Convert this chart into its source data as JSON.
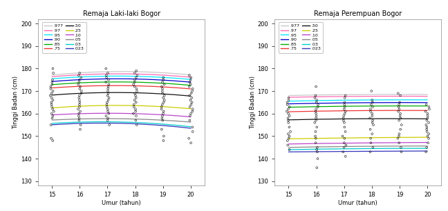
{
  "title_left": "Remaja Laki-laki Bogor",
  "title_right": "Remaja Perempuan Bogor",
  "xlabel": "Umur (tahun)",
  "ylabel": "Tinggi Badan (cm)",
  "xlim": [
    14.5,
    20.5
  ],
  "ylim": [
    128,
    202
  ],
  "xticks": [
    15,
    16,
    17,
    18,
    19,
    20
  ],
  "yticks": [
    130,
    140,
    150,
    160,
    170,
    180,
    190,
    200
  ],
  "legend_col1_labels": [
    ".977",
    ".97",
    ".95",
    ".90",
    ".85",
    ".75"
  ],
  "legend_col2_labels": [
    ".50",
    ".25",
    ".10",
    ".05",
    ".03",
    ".023"
  ],
  "ages": [
    15,
    16,
    17,
    18,
    19,
    20
  ],
  "curves_male": {
    "0.977": [
      177.0,
      178.2,
      178.7,
      178.5,
      178.1,
      177.2
    ],
    "0.97": [
      176.3,
      177.3,
      177.7,
      177.5,
      177.0,
      176.2
    ],
    "0.95": [
      175.4,
      176.3,
      176.7,
      176.5,
      176.0,
      175.2
    ],
    "0.90": [
      174.2,
      175.1,
      175.5,
      175.3,
      174.8,
      174.0
    ],
    "0.85": [
      172.8,
      173.7,
      174.1,
      173.9,
      173.4,
      172.6
    ],
    "0.75": [
      171.4,
      172.1,
      172.5,
      172.3,
      171.8,
      171.0
    ],
    "0.50": [
      168.2,
      169.0,
      169.4,
      169.2,
      168.7,
      167.8
    ],
    "0.25": [
      162.5,
      163.3,
      163.7,
      163.5,
      163.0,
      162.2
    ],
    "0.10": [
      159.5,
      159.8,
      160.2,
      160.0,
      159.5,
      158.5
    ],
    "0.05": [
      157.2,
      157.5,
      157.8,
      157.6,
      157.1,
      156.2
    ],
    "0.03": [
      155.8,
      156.0,
      156.3,
      156.1,
      155.6,
      154.0
    ],
    "0.023": [
      155.2,
      155.4,
      155.7,
      155.5,
      155.0,
      153.3
    ]
  },
  "curves_female": {
    "0.977": [
      168.0,
      168.3,
      168.4,
      168.5,
      168.5,
      168.5
    ],
    "0.97": [
      167.2,
      167.5,
      167.6,
      167.7,
      167.7,
      167.7
    ],
    "0.95": [
      165.5,
      165.8,
      166.0,
      166.0,
      166.1,
      166.1
    ],
    "0.90": [
      164.3,
      164.6,
      164.8,
      164.8,
      164.9,
      164.9
    ],
    "0.85": [
      162.8,
      163.1,
      163.3,
      163.3,
      163.4,
      163.4
    ],
    "0.75": [
      160.8,
      161.1,
      161.3,
      161.3,
      161.4,
      161.4
    ],
    "0.50": [
      157.2,
      157.5,
      157.7,
      157.7,
      157.7,
      157.7
    ],
    "0.25": [
      148.8,
      149.0,
      149.2,
      149.3,
      149.4,
      149.5
    ],
    "0.10": [
      146.5,
      146.7,
      146.9,
      147.0,
      147.1,
      147.2
    ],
    "0.05": [
      145.0,
      145.2,
      145.4,
      145.5,
      145.6,
      145.6
    ],
    "0.03": [
      144.0,
      144.2,
      144.4,
      144.5,
      144.5,
      144.6
    ],
    "0.023": [
      143.0,
      143.1,
      143.2,
      143.3,
      143.3,
      143.4
    ]
  },
  "curve_colors": {
    "0.977": "#c8c8c8",
    "0.97": "#ff69b4",
    "0.95": "#00e5ff",
    "0.90": "#0000cc",
    "0.85": "#00aa00",
    "0.75": "#ee3333",
    "0.50": "#111111",
    "0.25": "#cccc00",
    "0.10": "#bb44cc",
    "0.05": "#888888",
    "0.03": "#00cccc",
    "0.023": "#3333bb"
  },
  "scatter_male": {
    "15": [
      148,
      149,
      155,
      158,
      159,
      160,
      161,
      162,
      163,
      164,
      165,
      166,
      167,
      168,
      169,
      170,
      171,
      172,
      173,
      174,
      175,
      178,
      180
    ],
    "16": [
      153,
      155,
      157,
      158,
      159,
      160,
      161,
      162,
      163,
      164,
      165,
      166,
      167,
      168,
      169,
      170,
      171,
      172,
      173,
      174,
      175,
      176,
      177,
      178
    ],
    "17": [
      155,
      157,
      158,
      159,
      160,
      161,
      162,
      163,
      164,
      165,
      166,
      167,
      168,
      169,
      170,
      171,
      172,
      173,
      174,
      175,
      176,
      177,
      178,
      180
    ],
    "18": [
      155,
      157,
      159,
      160,
      161,
      162,
      163,
      164,
      165,
      166,
      167,
      168,
      169,
      170,
      171,
      172,
      173,
      174,
      175,
      176,
      177,
      178,
      179
    ],
    "19": [
      148,
      150,
      153,
      157,
      158,
      159,
      160,
      161,
      162,
      163,
      164,
      165,
      166,
      167,
      168,
      169,
      170,
      171,
      172,
      173,
      174,
      175,
      176
    ],
    "20": [
      147,
      149,
      152,
      154,
      157,
      159,
      160,
      161,
      162,
      163,
      164,
      165,
      166,
      167,
      168,
      169,
      170,
      171,
      172,
      173,
      174,
      175,
      176,
      177
    ]
  },
  "scatter_female": {
    "15": [
      144,
      146,
      148,
      149,
      150,
      151,
      152,
      154,
      156,
      157,
      158,
      159,
      160,
      161,
      162,
      163,
      164,
      165,
      166,
      167
    ],
    "16": [
      136,
      140,
      143,
      144,
      145,
      147,
      149,
      150,
      152,
      154,
      156,
      157,
      158,
      159,
      160,
      161,
      162,
      163,
      164,
      165,
      166,
      167,
      168,
      172
    ],
    "17": [
      141,
      143,
      145,
      146,
      147,
      149,
      150,
      152,
      154,
      156,
      157,
      158,
      159,
      160,
      161,
      162,
      163,
      164,
      165,
      167,
      168
    ],
    "18": [
      143,
      145,
      147,
      149,
      151,
      153,
      155,
      156,
      157,
      158,
      159,
      160,
      161,
      162,
      163,
      164,
      165,
      166,
      170
    ],
    "19": [
      143,
      145,
      147,
      149,
      150,
      151,
      153,
      155,
      157,
      158,
      159,
      160,
      161,
      162,
      163,
      164,
      165,
      168,
      169
    ],
    "20": [
      143,
      145,
      147,
      149,
      150,
      151,
      152,
      153,
      154,
      155,
      156,
      157,
      158,
      159,
      160,
      161,
      162,
      163,
      164
    ]
  }
}
